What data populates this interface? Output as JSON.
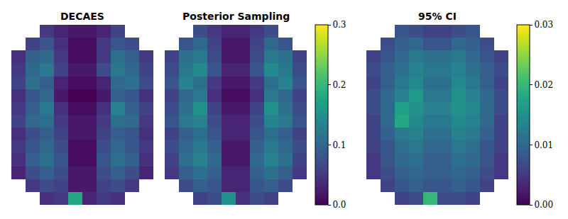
{
  "chart_data": [
    {
      "type": "heatmap",
      "title": "DECAES",
      "tick_labels": false,
      "zlim": [
        0,
        0.3
      ],
      "zticks": [
        {
          "value": 0,
          "label": "0.0"
        },
        0.1,
        0.2,
        0.3
      ],
      "cells": [
        [
          null,
          null,
          0.05,
          0.03,
          0.02,
          0.02,
          0.03,
          0.06,
          null,
          null
        ],
        [
          null,
          0.06,
          0.08,
          0.04,
          0.01,
          0.01,
          0.05,
          0.08,
          0.07,
          null
        ],
        [
          0.04,
          0.09,
          0.1,
          0.05,
          0.01,
          0.01,
          0.05,
          0.11,
          0.09,
          0.05
        ],
        [
          0.05,
          0.1,
          0.12,
          0.06,
          0.02,
          0.02,
          0.07,
          0.12,
          0.1,
          0.06
        ],
        [
          0.06,
          0.11,
          0.09,
          0.03,
          0.01,
          0.01,
          0.03,
          0.1,
          0.11,
          0.07
        ],
        [
          0.04,
          0.08,
          0.1,
          0.02,
          0.0,
          0.0,
          0.02,
          0.09,
          0.08,
          0.04
        ],
        [
          0.05,
          0.09,
          0.12,
          0.04,
          0.01,
          0.01,
          0.04,
          0.13,
          0.09,
          0.06
        ],
        [
          0.06,
          0.1,
          0.11,
          0.05,
          0.02,
          0.02,
          0.05,
          0.11,
          0.1,
          0.05
        ],
        [
          0.04,
          0.07,
          0.09,
          0.06,
          0.02,
          0.02,
          0.06,
          0.09,
          0.08,
          0.04
        ],
        [
          0.05,
          0.08,
          0.1,
          0.07,
          0.01,
          0.01,
          0.07,
          0.1,
          0.08,
          0.05
        ],
        [
          0.04,
          0.09,
          0.11,
          0.08,
          0.01,
          0.01,
          0.08,
          0.11,
          0.09,
          0.04
        ],
        [
          0.03,
          0.07,
          0.09,
          0.07,
          0.02,
          0.02,
          0.07,
          0.09,
          0.07,
          0.03
        ],
        [
          null,
          0.05,
          0.07,
          0.06,
          0.02,
          0.02,
          0.06,
          0.07,
          0.05,
          null
        ],
        [
          null,
          null,
          0.04,
          0.05,
          0.18,
          0.03,
          0.05,
          0.04,
          null,
          null
        ]
      ]
    },
    {
      "type": "heatmap",
      "title": "Posterior Sampling",
      "tick_labels": false,
      "zlim": [
        0,
        0.3
      ],
      "zticks": [
        {
          "value": 0,
          "label": "0.0"
        },
        0.1,
        0.2,
        0.3
      ],
      "cells": [
        [
          null,
          null,
          0.07,
          0.05,
          0.03,
          0.03,
          0.05,
          0.07,
          null,
          null
        ],
        [
          null,
          0.08,
          0.1,
          0.06,
          0.02,
          0.02,
          0.06,
          0.1,
          0.08,
          null
        ],
        [
          0.06,
          0.11,
          0.12,
          0.07,
          0.02,
          0.02,
          0.07,
          0.12,
          0.11,
          0.06
        ],
        [
          0.07,
          0.12,
          0.14,
          0.08,
          0.03,
          0.03,
          0.08,
          0.14,
          0.12,
          0.07
        ],
        [
          0.08,
          0.13,
          0.11,
          0.05,
          0.02,
          0.02,
          0.05,
          0.11,
          0.13,
          0.08
        ],
        [
          0.06,
          0.1,
          0.12,
          0.04,
          0.01,
          0.01,
          0.04,
          0.12,
          0.1,
          0.06
        ],
        [
          0.07,
          0.11,
          0.15,
          0.06,
          0.02,
          0.02,
          0.06,
          0.15,
          0.11,
          0.07
        ],
        [
          0.08,
          0.12,
          0.13,
          0.07,
          0.03,
          0.03,
          0.07,
          0.13,
          0.12,
          0.08
        ],
        [
          0.06,
          0.09,
          0.11,
          0.08,
          0.03,
          0.03,
          0.08,
          0.11,
          0.09,
          0.06
        ],
        [
          0.07,
          0.1,
          0.12,
          0.09,
          0.02,
          0.02,
          0.09,
          0.12,
          0.1,
          0.07
        ],
        [
          0.06,
          0.11,
          0.13,
          0.1,
          0.02,
          0.02,
          0.1,
          0.13,
          0.11,
          0.06
        ],
        [
          0.05,
          0.09,
          0.11,
          0.09,
          0.03,
          0.03,
          0.09,
          0.11,
          0.09,
          0.05
        ],
        [
          null,
          0.07,
          0.09,
          0.08,
          0.03,
          0.03,
          0.08,
          0.09,
          0.07,
          null
        ],
        [
          null,
          null,
          0.06,
          0.07,
          0.15,
          0.04,
          0.07,
          0.06,
          null,
          null
        ]
      ]
    },
    {
      "type": "heatmap",
      "title": "95% CI",
      "tick_labels": false,
      "zlim": [
        0,
        0.03
      ],
      "zticks": [
        {
          "value": 0,
          "label": "0.00"
        },
        0.01,
        0.02,
        0.03
      ],
      "cells": [
        [
          null,
          null,
          0.008,
          0.007,
          0.006,
          0.006,
          0.007,
          0.008,
          null,
          null
        ],
        [
          null,
          0.007,
          0.009,
          0.01,
          0.008,
          0.008,
          0.01,
          0.009,
          0.007,
          null
        ],
        [
          0.006,
          0.008,
          0.01,
          0.012,
          0.011,
          0.011,
          0.012,
          0.01,
          0.008,
          0.006
        ],
        [
          0.007,
          0.009,
          0.011,
          0.013,
          0.012,
          0.012,
          0.013,
          0.011,
          0.009,
          0.007
        ],
        [
          0.006,
          0.009,
          0.012,
          0.014,
          0.011,
          0.011,
          0.014,
          0.012,
          0.009,
          0.006
        ],
        [
          0.007,
          0.01,
          0.013,
          0.016,
          0.012,
          0.012,
          0.015,
          0.013,
          0.01,
          0.007
        ],
        [
          0.007,
          0.01,
          0.017,
          0.015,
          0.013,
          0.013,
          0.015,
          0.014,
          0.01,
          0.007
        ],
        [
          0.006,
          0.01,
          0.018,
          0.014,
          0.012,
          0.012,
          0.014,
          0.013,
          0.01,
          0.006
        ],
        [
          0.006,
          0.009,
          0.012,
          0.013,
          0.011,
          0.011,
          0.013,
          0.012,
          0.009,
          0.006
        ],
        [
          0.006,
          0.008,
          0.011,
          0.012,
          0.01,
          0.01,
          0.012,
          0.011,
          0.008,
          0.006
        ],
        [
          0.005,
          0.008,
          0.01,
          0.011,
          0.009,
          0.009,
          0.011,
          0.01,
          0.008,
          0.005
        ],
        [
          0.005,
          0.007,
          0.009,
          0.01,
          0.009,
          0.009,
          0.01,
          0.009,
          0.007,
          0.005
        ],
        [
          null,
          0.006,
          0.008,
          0.009,
          0.008,
          0.008,
          0.009,
          0.008,
          0.006,
          null
        ],
        [
          null,
          null,
          0.006,
          0.007,
          0.02,
          0.007,
          0.007,
          0.006,
          null,
          null
        ]
      ]
    }
  ]
}
